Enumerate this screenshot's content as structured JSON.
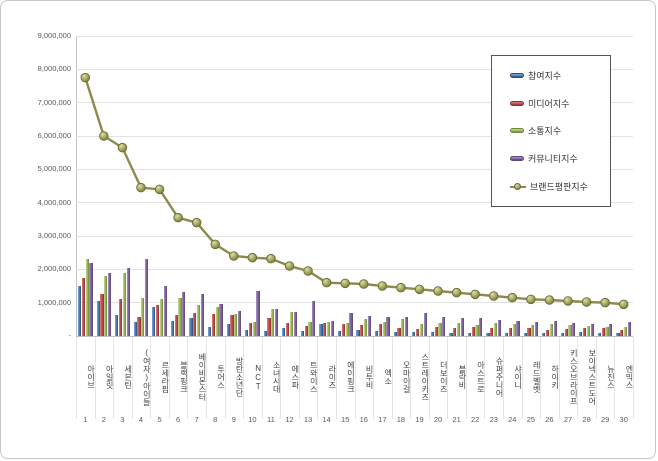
{
  "chart_data": {
    "type": "bar",
    "note": "grouped 3D bar chart with overlaid line (brand reputation index ranking, ranks 1-30)",
    "categories": [
      "아이브",
      "아일릿",
      "세븐틴",
      "(여자)아이들",
      "르세라핌",
      "블랙핑크",
      "베이비몬스터",
      "투어스",
      "방탄소년단",
      "NCT",
      "소녀시대",
      "에스파",
      "트와이스",
      "라이즈",
      "에이핑크",
      "비투비",
      "엑소",
      "오마이걸",
      "스트레이키즈",
      "더보이즈",
      "블락비",
      "아스트로",
      "슈퍼주니어",
      "샤이니",
      "레드벨벳",
      "하이키",
      "키스오브라이프",
      "보이넥스트도어",
      "뉴진스",
      "엔믹스"
    ],
    "rank_labels": [
      "1",
      "2",
      "3",
      "4",
      "5",
      "6",
      "7",
      "8",
      "9",
      "10",
      "11",
      "12",
      "13",
      "14",
      "15",
      "16",
      "17",
      "18",
      "19",
      "20",
      "21",
      "22",
      "23",
      "24",
      "25",
      "26",
      "27",
      "28",
      "29",
      "30"
    ],
    "series": [
      {
        "name": "참여지수",
        "key": "participation",
        "type": "bar",
        "color": "#4f81bd",
        "light": "#7da7d8",
        "dark": "#2c4d79",
        "values": [
          1500000,
          1050000,
          620000,
          420000,
          880000,
          450000,
          550000,
          280000,
          350000,
          180000,
          150000,
          250000,
          150000,
          350000,
          150000,
          180000,
          150000,
          120000,
          130000,
          120000,
          100000,
          100000,
          100000,
          100000,
          100000,
          100000,
          100000,
          120000,
          100000,
          80000
        ]
      },
      {
        "name": "미디어지수",
        "key": "media",
        "type": "bar",
        "color": "#c0504d",
        "light": "#d98481",
        "dark": "#8c3431",
        "values": [
          1750000,
          1250000,
          1100000,
          560000,
          920000,
          620000,
          680000,
          650000,
          630000,
          400000,
          550000,
          400000,
          300000,
          400000,
          350000,
          320000,
          350000,
          250000,
          220000,
          280000,
          250000,
          280000,
          250000,
          250000,
          250000,
          180000,
          220000,
          250000,
          250000,
          180000
        ]
      },
      {
        "name": "소통지수",
        "key": "communication",
        "type": "bar",
        "color": "#9bbb59",
        "light": "#c3d69b",
        "dark": "#71893f",
        "values": [
          2300000,
          1800000,
          1880000,
          1150000,
          1100000,
          1150000,
          920000,
          870000,
          670000,
          420000,
          820000,
          720000,
          420000,
          420000,
          400000,
          520000,
          420000,
          500000,
          350000,
          380000,
          400000,
          320000,
          380000,
          350000,
          320000,
          350000,
          330000,
          300000,
          280000,
          270000
        ]
      },
      {
        "name": "커뮤니티지수",
        "key": "community",
        "type": "bar",
        "color": "#8064a2",
        "light": "#a896c0",
        "dark": "#5c4776",
        "values": [
          2200000,
          1900000,
          2050000,
          2320000,
          1500000,
          1330000,
          1250000,
          950000,
          750000,
          1350000,
          800000,
          730000,
          1050000,
          450000,
          700000,
          600000,
          580000,
          580000,
          700000,
          570000,
          550000,
          550000,
          470000,
          450000,
          430000,
          450000,
          400000,
          350000,
          370000,
          420000
        ]
      },
      {
        "name": "브랜드평판지수",
        "key": "brand",
        "type": "line",
        "color": "#8b8b4b",
        "marker_fill": "#a8a864",
        "marker_edge": "#6b6b34",
        "values": [
          7750000,
          6000000,
          5650000,
          4450000,
          4400000,
          3550000,
          3400000,
          2750000,
          2400000,
          2350000,
          2320000,
          2100000,
          1950000,
          1600000,
          1580000,
          1560000,
          1500000,
          1450000,
          1400000,
          1350000,
          1300000,
          1250000,
          1200000,
          1150000,
          1100000,
          1080000,
          1050000,
          1020000,
          1000000,
          950000
        ]
      }
    ],
    "ylim": [
      0,
      9000000
    ],
    "ytick_interval": 1000000,
    "y_axis": {
      "tick_labels": [
        "-",
        "1,000,000",
        "2,000,000",
        "3,000,000",
        "4,000,000",
        "5,000,000",
        "6,000,000",
        "7,000,000",
        "8,000,000",
        "9,000,000"
      ]
    },
    "grid": true,
    "legend_position": "upper right",
    "legend_labels": [
      "참여지수",
      "미디어지수",
      "소통지수",
      "커뮤니티지수",
      "브랜드평판지수"
    ]
  },
  "colors": {
    "grid": "#e2e2e2",
    "axis": "#c2c2c2",
    "tick_text": "#595959",
    "category_text": "#3f3f3f",
    "frame_border": "#c8c8c8",
    "legend_border": "#555555"
  }
}
